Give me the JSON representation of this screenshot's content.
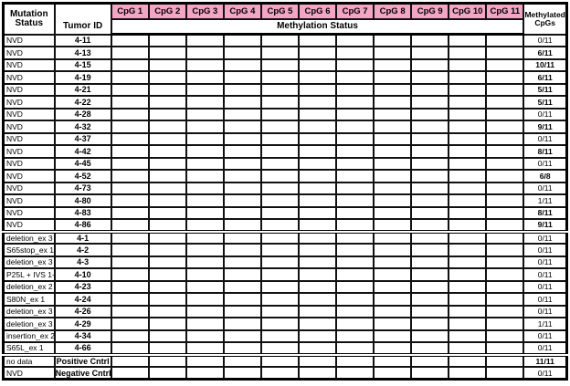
{
  "header": {
    "mutation_status_lines": [
      "Mutation",
      "Status"
    ],
    "tumor_id": "Tumor ID",
    "methylation_status": "Methylation Status",
    "methylated_cpgs_lines": [
      "Methylated",
      "CpGs"
    ],
    "cpg_columns": [
      "CpG 1",
      "CpG 2",
      "CpG 3",
      "CpG 4",
      "CpG 5",
      "CpG 6",
      "CpG 7",
      "CpG 8",
      "CpG 9",
      "CpG 10",
      "CpG 11"
    ]
  },
  "colors": {
    "unmethylated_yellow": "#F7E408",
    "methylated_blue": "#4070B0",
    "positive_control_red": "#ED2224",
    "header_pink": "#F2A6C4",
    "no_data_hatch_dark": "#666666",
    "no_data_hatch_light": "#E0E0E0",
    "grid_black": "#111111"
  },
  "chart_data": {
    "type": "heatmap",
    "title": "Methylation Status",
    "columns": [
      "CpG 1",
      "CpG 2",
      "CpG 3",
      "CpG 4",
      "CpG 5",
      "CpG 6",
      "CpG 7",
      "CpG 8",
      "CpG 9",
      "CpG 10",
      "CpG 11"
    ],
    "cell_states": {
      "U": "unmethylated",
      "M": "methylated",
      "P": "red",
      "X": "no-data-hatched"
    },
    "sections": [
      {
        "name": "nvd-tumors",
        "rows": [
          {
            "mutation_status": "NVD",
            "tumor_id": "4-11",
            "cells": "UUUUUUUUUUU",
            "methylated_cpgs": "0/11",
            "bold_fraction": false
          },
          {
            "mutation_status": "NVD",
            "tumor_id": "4-13",
            "cells": "MMMMMUUUMUU",
            "methylated_cpgs": "6/11",
            "bold_fraction": true
          },
          {
            "mutation_status": "NVD",
            "tumor_id": "4-15",
            "cells": "MMMMMMMMMUM",
            "methylated_cpgs": "10/11",
            "bold_fraction": true
          },
          {
            "mutation_status": "NVD",
            "tumor_id": "4-19",
            "cells": "UUUMMMUMMMU",
            "methylated_cpgs": "6/11",
            "bold_fraction": true
          },
          {
            "mutation_status": "NVD",
            "tumor_id": "4-21",
            "cells": "MUUMUMMUMUU",
            "methylated_cpgs": "5/11",
            "bold_fraction": true
          },
          {
            "mutation_status": "NVD",
            "tumor_id": "4-22",
            "cells": "MMMMUUMUUUU",
            "methylated_cpgs": "5/11",
            "bold_fraction": true
          },
          {
            "mutation_status": "NVD",
            "tumor_id": "4-28",
            "cells": "UUUUUUUUUUU",
            "methylated_cpgs": "0/11",
            "bold_fraction": false
          },
          {
            "mutation_status": "NVD",
            "tumor_id": "4-32",
            "cells": "MMMMUMUMMMM",
            "methylated_cpgs": "9/11",
            "bold_fraction": true
          },
          {
            "mutation_status": "NVD",
            "tumor_id": "4-37",
            "cells": "UUUUUUUUUUU",
            "methylated_cpgs": "0/11",
            "bold_fraction": false
          },
          {
            "mutation_status": "NVD",
            "tumor_id": "4-42",
            "cells": "MMMMUMMMMUU",
            "methylated_cpgs": "8/11",
            "bold_fraction": true
          },
          {
            "mutation_status": "NVD",
            "tumor_id": "4-45",
            "cells": "UUUUUUUUUUU",
            "methylated_cpgs": "0/11",
            "bold_fraction": false
          },
          {
            "mutation_status": "NVD",
            "tumor_id": "4-52",
            "cells": "MMUMUMMMXXX",
            "methylated_cpgs": "6/8",
            "bold_fraction": true
          },
          {
            "mutation_status": "NVD",
            "tumor_id": "4-73",
            "cells": "UUUUUUUUUUU",
            "methylated_cpgs": "0/11",
            "bold_fraction": false
          },
          {
            "mutation_status": "NVD",
            "tumor_id": "4-80",
            "cells": "MUUUUUUUUUU",
            "methylated_cpgs": "1/11",
            "bold_fraction": false
          },
          {
            "mutation_status": "NVD",
            "tumor_id": "4-83",
            "cells": "MMMMUUMMMMU",
            "methylated_cpgs": "8/11",
            "bold_fraction": true
          },
          {
            "mutation_status": "NVD",
            "tumor_id": "4-86",
            "cells": "MPPMMMUMMUM",
            "methylated_cpgs": "9/11",
            "bold_fraction": true
          }
        ]
      },
      {
        "name": "mutation-tumors",
        "rows": [
          {
            "mutation_status": "deletion_ex 3",
            "tumor_id": "4-1",
            "cells": "UUUUUUUUUUU",
            "methylated_cpgs": "0/11",
            "bold_fraction": false
          },
          {
            "mutation_status": "S65stop_ex 1",
            "tumor_id": "4-2",
            "cells": "UUUUUUUUUUU",
            "methylated_cpgs": "0/11",
            "bold_fraction": false
          },
          {
            "mutation_status": "deletion_ex 3",
            "tumor_id": "4-3",
            "cells": "UUUUUUUUUUU",
            "methylated_cpgs": "0/11",
            "bold_fraction": false
          },
          {
            "mutation_status": "P25L + IVS 1-1",
            "tumor_id": "4-10",
            "cells": "UUUUUUUUUUU",
            "methylated_cpgs": "0/11",
            "bold_fraction": false
          },
          {
            "mutation_status": "deletion_ex 2",
            "tumor_id": "4-23",
            "cells": "UUUUUUUUUUU",
            "methylated_cpgs": "0/11",
            "bold_fraction": false
          },
          {
            "mutation_status": "S80N_ex 1",
            "tumor_id": "4-24",
            "cells": "UUUUUUUUUUU",
            "methylated_cpgs": "0/11",
            "bold_fraction": false
          },
          {
            "mutation_status": "deletion_ex 3",
            "tumor_id": "4-26",
            "cells": "UUUUUUUUUUU",
            "methylated_cpgs": "0/11",
            "bold_fraction": false
          },
          {
            "mutation_status": "deletion_ex 3",
            "tumor_id": "4-29",
            "cells": "UUUUUUMUUUU",
            "methylated_cpgs": "1/11",
            "bold_fraction": false
          },
          {
            "mutation_status": "insertion_ex 2",
            "tumor_id": "4-34",
            "cells": "UUUUUUUUUUU",
            "methylated_cpgs": "0/11",
            "bold_fraction": false
          },
          {
            "mutation_status": "S65L_ex 1",
            "tumor_id": "4-66",
            "cells": "UUUUUUUUUUU",
            "methylated_cpgs": "0/11",
            "bold_fraction": false
          }
        ]
      },
      {
        "name": "controls",
        "rows": [
          {
            "mutation_status": "no data",
            "tumor_id": "Positive Cntrl",
            "cells": "PPPPPPPPPPP",
            "methylated_cpgs": "11/11",
            "bold_fraction": true
          },
          {
            "mutation_status": "NVD",
            "tumor_id": "Negative Cntrl",
            "cells": "UUUUUUUUUUU",
            "methylated_cpgs": "0/11",
            "bold_fraction": false
          }
        ]
      }
    ]
  }
}
